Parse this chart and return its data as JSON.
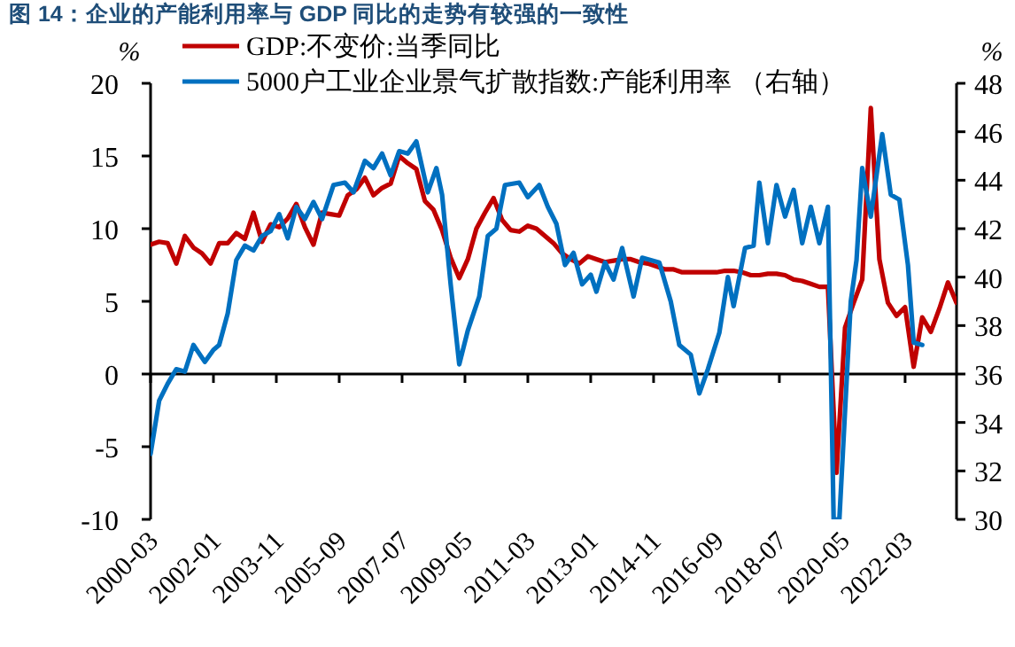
{
  "chart_data": {
    "type": "line",
    "title": "图 14：企业的产能利用率与 GDP 同比的走势有较强的一致性",
    "ylabel": "%",
    "y2label": "%",
    "xlim": [
      "2000-03",
      "2023-09"
    ],
    "xticks": [
      "2000-03",
      "2002-01",
      "2003-11",
      "2005-09",
      "2007-07",
      "2009-05",
      "2011-03",
      "2013-01",
      "2014-11",
      "2016-09",
      "2018-07",
      "2020-05",
      "2022-03"
    ],
    "ylim": [
      -10,
      20
    ],
    "yticks": [
      -10,
      -5,
      0,
      5,
      10,
      15,
      20
    ],
    "y2lim": [
      30,
      48
    ],
    "y2ticks": [
      30,
      32,
      34,
      36,
      38,
      40,
      42,
      44,
      46,
      48
    ],
    "legend": "top",
    "series": [
      {
        "name": "GDP:不变价:当季同比",
        "color": "#c00000",
        "x": [
          "2000-03",
          "2000-06",
          "2000-09",
          "2000-12",
          "2001-03",
          "2001-06",
          "2001-09",
          "2001-12",
          "2002-03",
          "2002-06",
          "2002-09",
          "2002-12",
          "2003-03",
          "2003-06",
          "2003-09",
          "2003-12",
          "2004-03",
          "2004-06",
          "2004-09",
          "2004-12",
          "2005-03",
          "2005-06",
          "2005-09",
          "2005-12",
          "2006-03",
          "2006-06",
          "2006-09",
          "2006-12",
          "2007-03",
          "2007-06",
          "2007-09",
          "2007-12",
          "2008-03",
          "2008-06",
          "2008-09",
          "2008-12",
          "2009-03",
          "2009-06",
          "2009-09",
          "2009-12",
          "2010-03",
          "2010-06",
          "2010-09",
          "2010-12",
          "2011-03",
          "2011-06",
          "2011-09",
          "2011-12",
          "2012-03",
          "2012-06",
          "2012-09",
          "2012-12",
          "2013-03",
          "2013-06",
          "2013-09",
          "2013-12",
          "2014-03",
          "2014-06",
          "2014-09",
          "2014-12",
          "2015-03",
          "2015-06",
          "2015-09",
          "2015-12",
          "2016-03",
          "2016-06",
          "2016-09",
          "2016-12",
          "2017-03",
          "2017-06",
          "2017-09",
          "2017-12",
          "2018-03",
          "2018-06",
          "2018-09",
          "2018-12",
          "2019-03",
          "2019-06",
          "2019-09",
          "2019-12",
          "2020-03",
          "2020-06",
          "2020-09",
          "2020-12",
          "2021-03",
          "2021-06",
          "2021-09",
          "2021-12",
          "2022-03",
          "2022-06",
          "2022-09",
          "2022-12",
          "2023-03",
          "2023-06",
          "2023-09"
        ],
        "values": [
          8.9,
          9.1,
          9.0,
          7.6,
          9.5,
          8.7,
          8.3,
          7.6,
          9.0,
          9.0,
          9.7,
          9.3,
          11.1,
          9.1,
          10.3,
          10.1,
          10.7,
          11.7,
          10.1,
          8.9,
          11.1,
          11.0,
          10.9,
          12.3,
          12.7,
          13.5,
          12.3,
          12.8,
          13.1,
          15.0,
          14.5,
          14.1,
          11.9,
          11.3,
          9.9,
          8.0,
          6.6,
          7.9,
          10.0,
          11.1,
          12.1,
          10.6,
          9.9,
          9.8,
          10.2,
          10.0,
          9.5,
          9.0,
          8.3,
          7.9,
          7.6,
          8.1,
          7.9,
          7.7,
          7.8,
          7.9,
          7.9,
          7.7,
          7.6,
          7.4,
          7.2,
          7.2,
          7.0,
          7.0,
          7.0,
          7.0,
          7.0,
          7.1,
          7.1,
          7.0,
          6.8,
          6.8,
          6.9,
          6.9,
          6.8,
          6.5,
          6.4,
          6.2,
          6.0,
          6.0,
          -6.8,
          3.2,
          4.9,
          6.5,
          18.3,
          7.9,
          4.9,
          4.0,
          4.6,
          0.5,
          3.9,
          2.9,
          4.5,
          6.3,
          4.9
        ]
      },
      {
        "name": "5000户工业企业景气扩散指数:产能利用率 （右轴）",
        "color": "#0070c0",
        "axis": "y2",
        "x": [
          "2000-03",
          "2000-06",
          "2000-09",
          "2000-12",
          "2001-03",
          "2001-06",
          "2001-10",
          "2002-01",
          "2002-03",
          "2002-06",
          "2002-09",
          "2002-12",
          "2003-03",
          "2003-06",
          "2003-09",
          "2003-12",
          "2004-03",
          "2004-06",
          "2004-09",
          "2004-12",
          "2005-03",
          "2005-07",
          "2005-11",
          "2006-02",
          "2006-06",
          "2006-09",
          "2006-12",
          "2007-03",
          "2007-06",
          "2007-09",
          "2007-12",
          "2008-04",
          "2008-07",
          "2008-09",
          "2008-12",
          "2009-03",
          "2009-06",
          "2009-10",
          "2010-01",
          "2010-04",
          "2010-07",
          "2010-12",
          "2011-03",
          "2011-07",
          "2011-10",
          "2012-01",
          "2012-04",
          "2012-07",
          "2012-10",
          "2013-01",
          "2013-03",
          "2013-06",
          "2013-09",
          "2013-12",
          "2014-04",
          "2014-07",
          "2015-01",
          "2015-05",
          "2015-08",
          "2015-12",
          "2016-03",
          "2016-06",
          "2016-10",
          "2017-01",
          "2017-03",
          "2017-07",
          "2017-10",
          "2017-12",
          "2018-03",
          "2018-06",
          "2018-09",
          "2018-12",
          "2019-03",
          "2019-06",
          "2019-09",
          "2019-12",
          "2020-02",
          "2020-04",
          "2020-08",
          "2020-10",
          "2020-12",
          "2021-03",
          "2021-07",
          "2021-10",
          "2022-01",
          "2022-04",
          "2022-06",
          "2022-09"
        ],
        "values": [
          32.7,
          34.9,
          35.6,
          36.2,
          36.1,
          37.2,
          36.5,
          37.0,
          37.2,
          38.5,
          40.7,
          41.3,
          41.1,
          41.7,
          41.9,
          42.6,
          41.6,
          42.9,
          42.4,
          43.1,
          42.4,
          43.8,
          43.9,
          43.5,
          44.8,
          44.5,
          45.1,
          44.2,
          45.2,
          45.1,
          45.6,
          43.5,
          44.5,
          43.4,
          39.7,
          36.4,
          37.8,
          39.2,
          41.7,
          42.0,
          43.8,
          43.9,
          43.3,
          43.8,
          42.9,
          42.2,
          40.5,
          41.0,
          39.7,
          40.1,
          39.4,
          40.6,
          39.9,
          41.2,
          39.2,
          40.8,
          40.6,
          39.0,
          37.2,
          36.8,
          35.2,
          36.2,
          37.7,
          40.0,
          38.8,
          41.2,
          41.3,
          43.9,
          41.4,
          43.8,
          42.5,
          43.6,
          41.4,
          42.9,
          41.4,
          42.9,
          30,
          30,
          39.0,
          40.7,
          44.5,
          42.5,
          45.9,
          43.4,
          43.2,
          40.5,
          37.3,
          37.2
        ]
      }
    ]
  }
}
